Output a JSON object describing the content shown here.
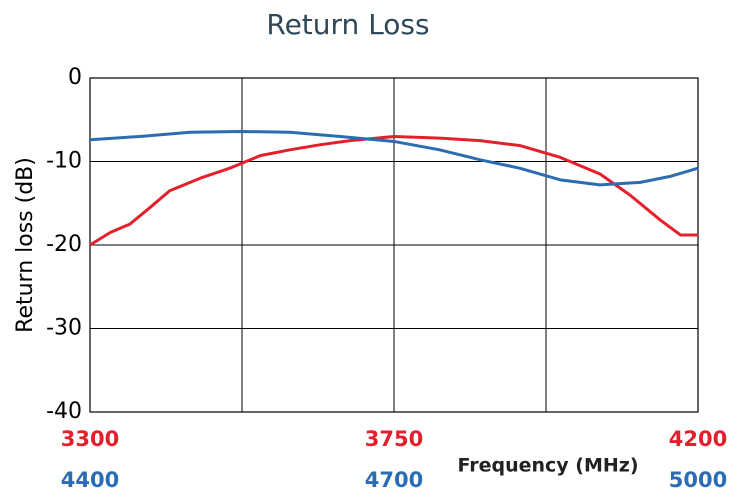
{
  "chart_data": {
    "type": "line",
    "title": "Return Loss",
    "ylabel": "Return loss (dB)",
    "xlabel": "Frequency (MHz)",
    "ylim": [
      -40,
      0
    ],
    "yticks": [
      -40,
      -30,
      -20,
      -10,
      0
    ],
    "xlim": [
      3300,
      4200
    ],
    "xticks": [
      3300,
      3750,
      4200
    ],
    "xgrid": [
      3300,
      3525,
      3750,
      3975,
      4200
    ],
    "x2lim": [
      4400,
      5000
    ],
    "x2ticks": [
      4400,
      4700,
      5000
    ],
    "grid": true,
    "series": [
      {
        "color": "#e3202b",
        "xaxis": "x",
        "x": [
          3300,
          3330,
          3359,
          3389,
          3418,
          3463,
          3507,
          3552,
          3596,
          3640,
          3685,
          3750,
          3818,
          3877,
          3937,
          3996,
          4055,
          4099,
          4144,
          4174,
          4200
        ],
        "values": [
          -20,
          -18.5,
          -17.5,
          -15.5,
          -13.5,
          -12,
          -10.8,
          -9.3,
          -8.6,
          -8,
          -7.5,
          -7,
          -7.2,
          -7.5,
          -8.1,
          -9.5,
          -11.5,
          -14,
          -17,
          -18.8,
          -18.8
        ]
      },
      {
        "color": "#2b6cb3",
        "xaxis": "x2",
        "x": [
          4400,
          4449,
          4499,
          4548,
          4597,
          4647,
          4700,
          4745,
          4785,
          4824,
          4864,
          4903,
          4943,
          4972,
          5000
        ],
        "values": [
          -7.4,
          -7,
          -6.5,
          -6.4,
          -6.5,
          -7,
          -7.6,
          -8.6,
          -9.8,
          -10.8,
          -12.2,
          -12.8,
          -12.5,
          -11.8,
          -10.8
        ]
      }
    ]
  }
}
